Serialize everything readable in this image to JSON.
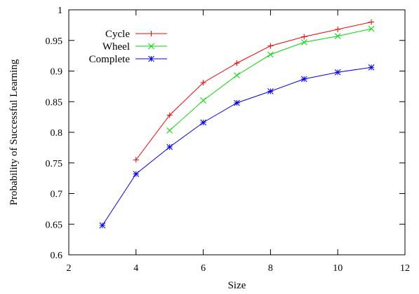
{
  "chart_data": {
    "type": "line",
    "title": "",
    "xlabel": "Size",
    "ylabel": "Probability of Successful Learning",
    "xlim": [
      2,
      12
    ],
    "ylim": [
      0.6,
      1
    ],
    "x_ticks": [
      2,
      4,
      6,
      8,
      10,
      12
    ],
    "y_ticks": [
      0.6,
      0.65,
      0.7,
      0.75,
      0.8,
      0.85,
      0.9,
      0.95,
      1
    ],
    "grid": false,
    "legend_position": "top-left",
    "series": [
      {
        "name": "Cycle",
        "color": "#ff0000",
        "marker": "plus",
        "x": [
          4,
          5,
          6,
          7,
          8,
          9,
          10,
          11
        ],
        "y": [
          0.755,
          0.828,
          0.881,
          0.913,
          0.941,
          0.956,
          0.968,
          0.98
        ]
      },
      {
        "name": "Wheel",
        "color": "#00dd00",
        "marker": "cross",
        "x": [
          5,
          6,
          7,
          8,
          9,
          10,
          11
        ],
        "y": [
          0.803,
          0.852,
          0.893,
          0.927,
          0.947,
          0.957,
          0.969
        ]
      },
      {
        "name": "Complete",
        "color": "#0000ff",
        "marker": "star",
        "x": [
          3,
          4,
          5,
          6,
          7,
          8,
          9,
          10,
          11
        ],
        "y": [
          0.648,
          0.732,
          0.776,
          0.816,
          0.848,
          0.867,
          0.887,
          0.898,
          0.906
        ]
      }
    ]
  }
}
